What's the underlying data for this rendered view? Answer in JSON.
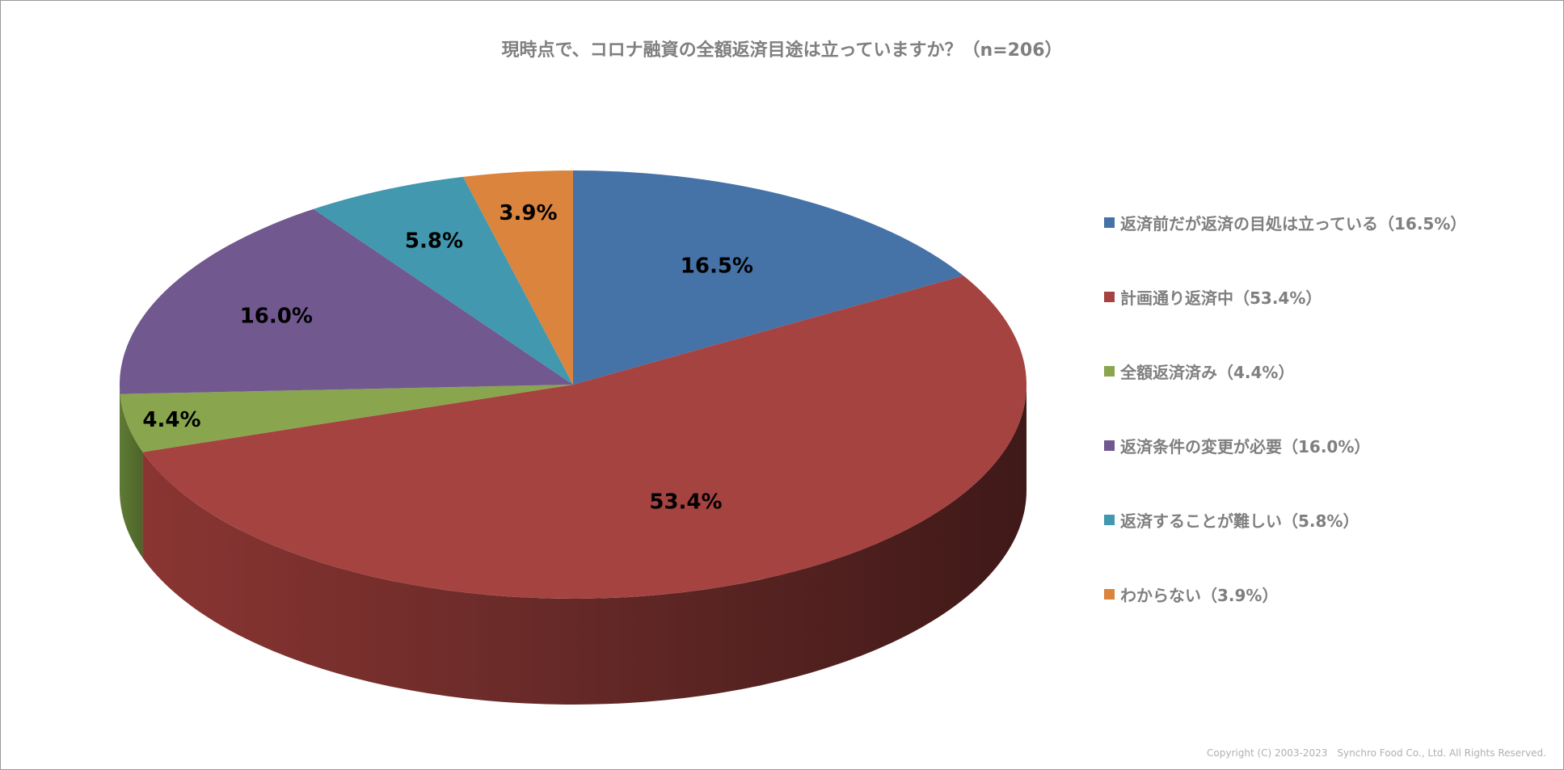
{
  "chart_data": {
    "type": "pie",
    "title": "現時点で、コロナ融資の全額返済目途は立っていますか？（n=206）",
    "slices": [
      {
        "label": "返済前だが返済の目処は立っている（16.5%）",
        "value": 16.5,
        "data_label": "16.5%",
        "color": "#4572A7"
      },
      {
        "label": "計画通り返済中（53.4%）",
        "value": 53.4,
        "data_label": "53.4%",
        "color": "#A54341"
      },
      {
        "label": "全額返済済み（4.4%）",
        "value": 4.4,
        "data_label": "4.4%",
        "color": "#89A54E"
      },
      {
        "label": "返済条件の変更が必要（16.0%）",
        "value": 16.0,
        "data_label": "16.0%",
        "color": "#71588F"
      },
      {
        "label": "返済することが難しい（5.8%）",
        "value": 5.8,
        "data_label": "5.8%",
        "color": "#4198AF"
      },
      {
        "label": "わからない（3.9%）",
        "value": 3.9,
        "data_label": "3.9%",
        "color": "#DB843D"
      }
    ],
    "legend_position": "right",
    "three_d": true
  },
  "footer": {
    "copyright": "Copyright (C) 2003-2023　Synchro Food Co., Ltd. All Rights Reserved."
  }
}
